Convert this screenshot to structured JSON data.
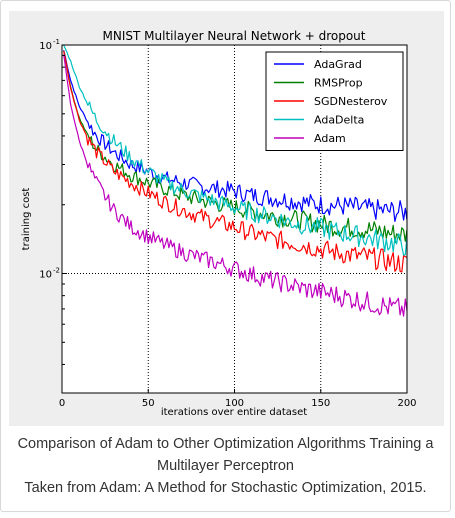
{
  "chart_data": {
    "type": "line",
    "title": "MNIST Multilayer Neural Network + dropout",
    "xlabel": "iterations over entire dataset",
    "ylabel": "training cost",
    "xlim": [
      0,
      200
    ],
    "ylim": [
      0.003,
      0.1
    ],
    "yscale": "log",
    "xticks": [
      "0",
      "50",
      "100",
      "150",
      "200"
    ],
    "yticks": [
      {
        "value": 0.1,
        "label": "10",
        "exp": "-1"
      },
      {
        "value": 0.01,
        "label": "10",
        "exp": "-2"
      }
    ],
    "grid": true,
    "legend_position": "top-right",
    "series": [
      {
        "name": "AdaGrad",
        "color": "#0000ff",
        "x": [
          1,
          5,
          10,
          15,
          20,
          30,
          40,
          50,
          60,
          70,
          80,
          90,
          100,
          110,
          120,
          130,
          140,
          150,
          160,
          170,
          180,
          190,
          200
        ],
        "y": [
          0.095,
          0.07,
          0.054,
          0.046,
          0.04,
          0.034,
          0.03,
          0.028,
          0.026,
          0.025,
          0.024,
          0.0235,
          0.023,
          0.022,
          0.0215,
          0.021,
          0.0205,
          0.02,
          0.0198,
          0.0195,
          0.019,
          0.0188,
          0.0185
        ]
      },
      {
        "name": "RMSProp",
        "color": "#008000",
        "x": [
          1,
          5,
          10,
          15,
          20,
          30,
          40,
          50,
          60,
          70,
          80,
          90,
          100,
          110,
          120,
          130,
          140,
          150,
          160,
          170,
          180,
          190,
          200
        ],
        "y": [
          0.095,
          0.065,
          0.048,
          0.04,
          0.035,
          0.03,
          0.027,
          0.025,
          0.0235,
          0.022,
          0.021,
          0.0202,
          0.0195,
          0.0188,
          0.018,
          0.0175,
          0.017,
          0.0165,
          0.016,
          0.0158,
          0.0155,
          0.015,
          0.0148
        ]
      },
      {
        "name": "SGDNesterov",
        "color": "#ff0000",
        "x": [
          1,
          5,
          10,
          15,
          20,
          30,
          40,
          50,
          60,
          70,
          80,
          90,
          100,
          110,
          120,
          130,
          140,
          150,
          160,
          170,
          180,
          190,
          200
        ],
        "y": [
          0.095,
          0.065,
          0.047,
          0.039,
          0.034,
          0.028,
          0.025,
          0.0225,
          0.0205,
          0.019,
          0.0178,
          0.0168,
          0.016,
          0.015,
          0.0143,
          0.0138,
          0.0133,
          0.0128,
          0.0123,
          0.012,
          0.0117,
          0.0113,
          0.011
        ]
      },
      {
        "name": "AdaDelta",
        "color": "#00bfbf",
        "x": [
          1,
          5,
          10,
          15,
          20,
          30,
          40,
          50,
          60,
          70,
          80,
          90,
          100,
          110,
          120,
          130,
          140,
          150,
          160,
          170,
          180,
          190,
          200
        ],
        "y": [
          0.1,
          0.085,
          0.066,
          0.055,
          0.047,
          0.038,
          0.032,
          0.028,
          0.025,
          0.0232,
          0.0218,
          0.0205,
          0.0195,
          0.0185,
          0.0178,
          0.017,
          0.0163,
          0.0158,
          0.0152,
          0.0147,
          0.0142,
          0.0137,
          0.0132
        ]
      },
      {
        "name": "Adam",
        "color": "#bf00bf",
        "x": [
          1,
          5,
          10,
          15,
          20,
          30,
          40,
          50,
          60,
          70,
          80,
          90,
          100,
          110,
          120,
          130,
          140,
          150,
          160,
          170,
          180,
          190,
          200
        ],
        "y": [
          0.09,
          0.055,
          0.038,
          0.03,
          0.025,
          0.019,
          0.016,
          0.0145,
          0.0133,
          0.0124,
          0.0117,
          0.0111,
          0.0105,
          0.0099,
          0.0094,
          0.009,
          0.0086,
          0.0083,
          0.008,
          0.0077,
          0.0074,
          0.0071,
          0.0069
        ]
      }
    ]
  },
  "caption": {
    "line1": "Comparison of Adam to Other Optimization Algorithms Training a",
    "line2": "Multilayer Perceptron",
    "line3": "Taken from Adam: A Method for Stochastic Optimization, 2015."
  }
}
